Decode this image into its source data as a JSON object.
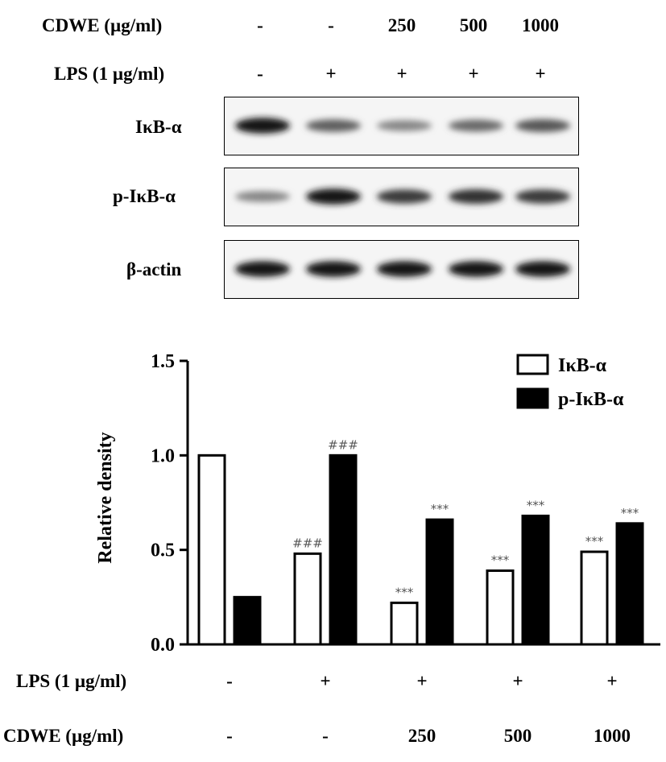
{
  "blot_header": {
    "rows": [
      {
        "label": "CDWE (µg/ml)",
        "values": [
          "-",
          "-",
          "250",
          "500",
          "1000"
        ]
      },
      {
        "label": "LPS (1 µg/ml)",
        "values": [
          "-",
          "+",
          "+",
          "+",
          "+"
        ]
      }
    ]
  },
  "blots": [
    {
      "label": "IκB-α",
      "band_intensity": [
        0.95,
        0.55,
        0.35,
        0.5,
        0.6
      ]
    },
    {
      "label": "p-IκB-α",
      "band_intensity": [
        0.35,
        0.95,
        0.75,
        0.8,
        0.75
      ]
    },
    {
      "label": "β-actin",
      "band_intensity": [
        0.95,
        0.95,
        0.95,
        0.95,
        0.95
      ]
    }
  ],
  "chart_data": {
    "type": "bar",
    "ylabel": "Relative density",
    "ylim": [
      0,
      1.5
    ],
    "yticks": [
      "0.0",
      "0.5",
      "1.0",
      "1.5"
    ],
    "series": [
      {
        "name": "IκB-α",
        "fill": "#ffffff",
        "values": [
          1.0,
          0.48,
          0.22,
          0.39,
          0.49
        ],
        "annotations": [
          "",
          "###",
          "***",
          "***",
          "***"
        ]
      },
      {
        "name": "p-IκB-α",
        "fill": "#000000",
        "values": [
          0.25,
          1.0,
          0.66,
          0.68,
          0.64
        ],
        "annotations": [
          "",
          "###",
          "***",
          "***",
          "***"
        ]
      }
    ],
    "legend": "top-right"
  },
  "chart_footer": {
    "rows": [
      {
        "label": "LPS (1 µg/ml)",
        "values": [
          "-",
          "+",
          "+",
          "+",
          "+"
        ]
      },
      {
        "label": "CDWE (µg/ml)",
        "values": [
          "-",
          "-",
          "250",
          "500",
          "1000"
        ]
      }
    ]
  }
}
